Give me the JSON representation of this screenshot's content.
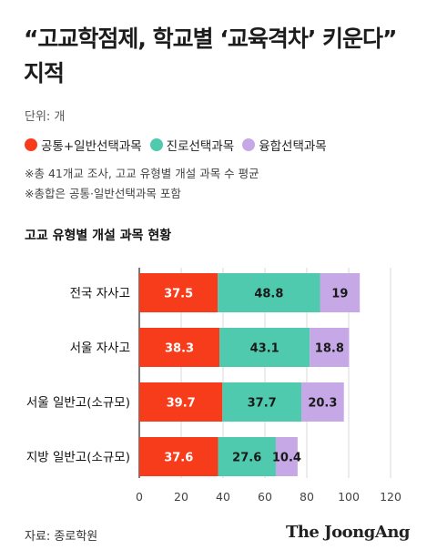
{
  "title": "“고교학점제, 학교별 ‘교육격차’ 키운다”\n지적",
  "unit_text": "단위: 개",
  "legend": [
    {
      "label": "공통+일반선택과목",
      "color": "#f73c1c"
    },
    {
      "label": "진로선택과목",
      "color": "#4fcaae"
    },
    {
      "label": "융합선택과목",
      "color": "#c6a8e6"
    }
  ],
  "notes": [
    "※총 41개교 조사, 고교 유형별 개설 과목 수 평균",
    "※총합은 공통·일반선택과목 포함"
  ],
  "source": "자료: 종로학원",
  "brand": "The JoongAng",
  "chart_data": {
    "type": "bar",
    "orientation": "horizontal",
    "stacked": true,
    "title": "고교 유형별 개설 과목 현황",
    "categories": [
      "전국 자사고",
      "서울 자사고",
      "서울 일반고(소규모)",
      "지방 일반고(소규모)"
    ],
    "series": [
      {
        "name": "공통+일반선택과목",
        "color": "#f73c1c",
        "values": [
          37.5,
          38.3,
          39.7,
          37.6
        ],
        "labels": [
          "37.5",
          "38.3",
          "39.7",
          "37.6"
        ]
      },
      {
        "name": "진로선택과목",
        "color": "#4fcaae",
        "values": [
          48.8,
          43.1,
          37.7,
          27.6
        ],
        "labels": [
          "48.8",
          "43.1",
          "37.7",
          "27.6"
        ]
      },
      {
        "name": "융합선택과목",
        "color": "#c6a8e6",
        "values": [
          19,
          18.8,
          20.3,
          10.4
        ],
        "labels": [
          "19",
          "18.8",
          "20.3",
          "10.4"
        ]
      }
    ],
    "xlim": [
      0,
      120
    ],
    "xticks": [
      0,
      20,
      40,
      60,
      80,
      100,
      120
    ],
    "grid": true,
    "legend_position": "top"
  }
}
